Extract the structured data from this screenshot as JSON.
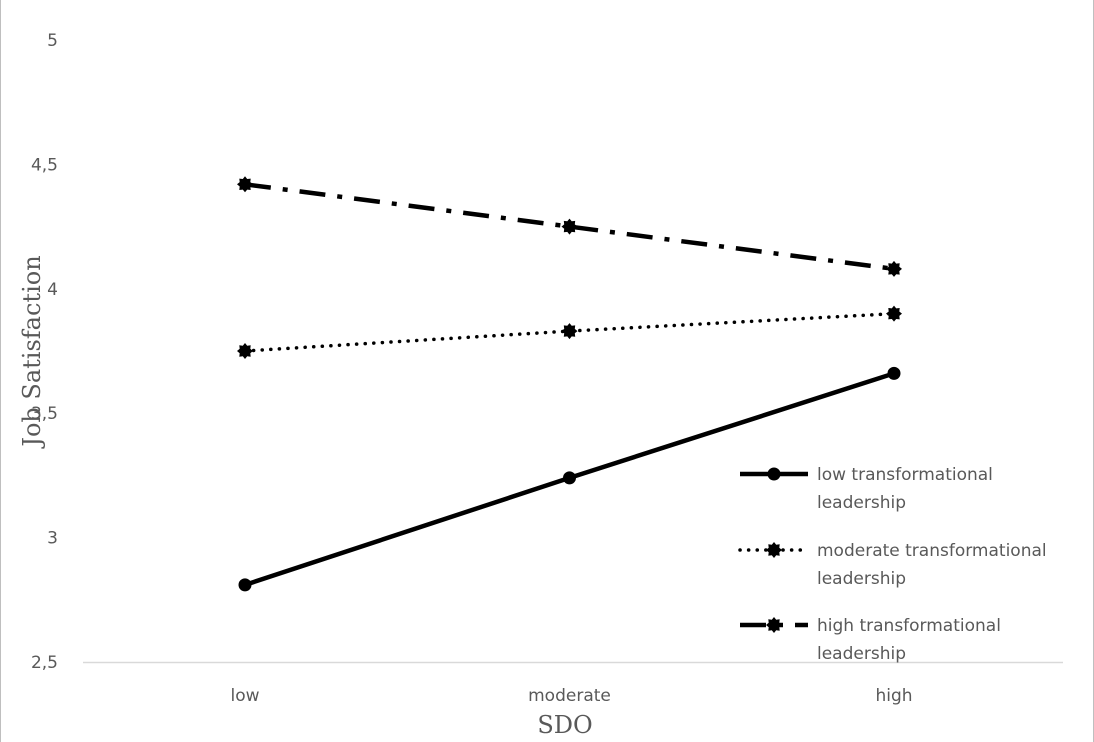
{
  "chart_data": {
    "type": "line",
    "categories": [
      "low",
      "moderate",
      "high"
    ],
    "xlabel": "SDO",
    "ylabel": "Job Satisfaction",
    "ylim": [
      2.5,
      5
    ],
    "yticks": [
      "2,5",
      "3",
      "3,5",
      "4",
      "4,5",
      "5"
    ],
    "ytick_values": [
      2.5,
      3,
      3.5,
      4,
      4.5,
      5
    ],
    "grid": false,
    "legend_position": "right",
    "series": [
      {
        "name": "low transformational leadership",
        "legend_lines": [
          "low transformational",
          "leadership"
        ],
        "style": "solid",
        "marker": "circle",
        "values": [
          2.81,
          3.24,
          3.66
        ]
      },
      {
        "name": "moderate transformational leadership",
        "legend_lines": [
          "moderate transformational",
          "leadership"
        ],
        "style": "dotted",
        "marker": "star",
        "values": [
          3.75,
          3.83,
          3.9
        ]
      },
      {
        "name": "high transformational leadership",
        "legend_lines": [
          "high transformational",
          "leadership"
        ],
        "style": "dashdot",
        "marker": "star",
        "values": [
          4.42,
          4.25,
          4.08
        ]
      }
    ],
    "colors": {
      "series": "#000000",
      "text": "#595959",
      "axis": "#d9d9d9"
    }
  }
}
